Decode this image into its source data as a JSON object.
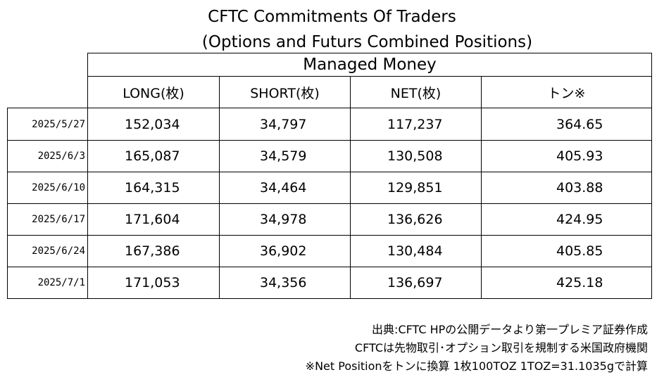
{
  "title": {
    "line1": "CFTC Commitments Of Traders",
    "line2": "(Options and Futurs Combined Positions)"
  },
  "table": {
    "group_header": "Managed Money",
    "columns": [
      "LONG(枚)",
      "SHORT(枚)",
      "NET(枚)",
      "トン※"
    ],
    "rows": [
      {
        "date": "2025/5/27",
        "long": "152,034",
        "short": "34,797",
        "net": "117,237",
        "ton": "364.65"
      },
      {
        "date": "2025/6/3",
        "long": "165,087",
        "short": "34,579",
        "net": "130,508",
        "ton": "405.93"
      },
      {
        "date": "2025/6/10",
        "long": "164,315",
        "short": "34,464",
        "net": "129,851",
        "ton": "403.88"
      },
      {
        "date": "2025/6/17",
        "long": "171,604",
        "short": "34,978",
        "net": "136,626",
        "ton": "424.95"
      },
      {
        "date": "2025/6/24",
        "long": "167,386",
        "short": "36,902",
        "net": "130,484",
        "ton": "405.85"
      },
      {
        "date": "2025/7/1",
        "long": "171,053",
        "short": "34,356",
        "net": "136,697",
        "ton": "425.18"
      }
    ]
  },
  "notes": [
    "出典:CFTC HPの公開データより第一プレミア証券作成",
    "CFTCは先物取引･オプション取引を規制する米国政府機関",
    "※Net Positionをトンに換算 1枚100TOZ 1TOZ=31.1035gで計算"
  ]
}
